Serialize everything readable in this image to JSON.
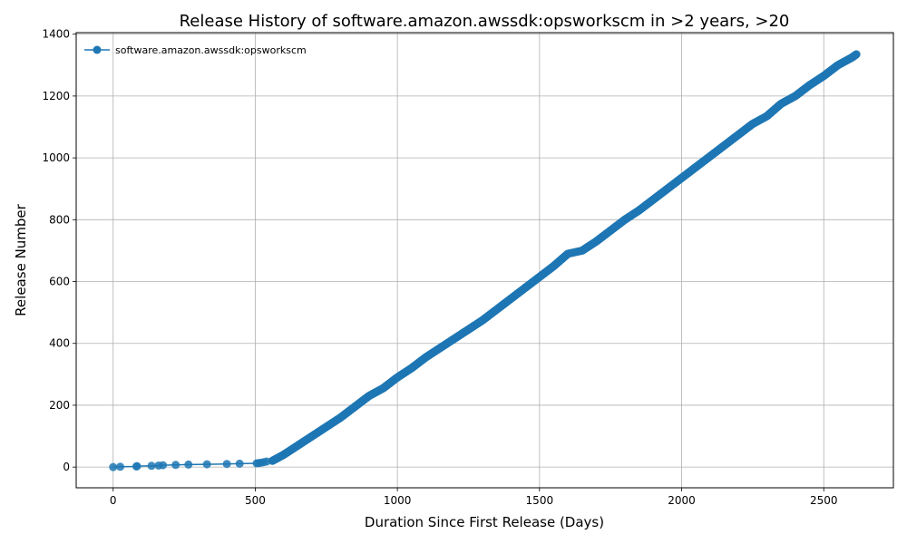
{
  "chart_data": {
    "type": "line",
    "title": "Release History of software.amazon.awssdk:opsworkscm in >2 years, >20",
    "xlabel": "Duration Since First Release (Days)",
    "ylabel": "Release Number",
    "xlim": [
      -130,
      2745
    ],
    "ylim": [
      -67,
      1405
    ],
    "xticks": [
      0,
      500,
      1000,
      1500,
      2000,
      2500
    ],
    "yticks": [
      0,
      200,
      400,
      600,
      800,
      1000,
      1200,
      1400
    ],
    "grid": true,
    "legend_position": "top-left",
    "series": [
      {
        "name": "software.amazon.awssdk:opsworkscm",
        "color": "#1f77b4",
        "marker": "circle",
        "points": [
          [
            0,
            0
          ],
          [
            25,
            1
          ],
          [
            82,
            2
          ],
          [
            84,
            3
          ],
          [
            135,
            4
          ],
          [
            160,
            5
          ],
          [
            175,
            6
          ],
          [
            220,
            7
          ],
          [
            265,
            8
          ],
          [
            330,
            9
          ],
          [
            400,
            10
          ],
          [
            445,
            11
          ],
          [
            505,
            12
          ],
          [
            512,
            13
          ],
          [
            520,
            14
          ],
          [
            530,
            16
          ],
          [
            540,
            18
          ],
          [
            560,
            20
          ]
        ],
        "segments": [
          [
            560,
            20
          ],
          [
            600,
            40
          ],
          [
            650,
            70
          ],
          [
            700,
            100
          ],
          [
            750,
            130
          ],
          [
            800,
            160
          ],
          [
            850,
            195
          ],
          [
            900,
            230
          ],
          [
            950,
            255
          ],
          [
            1000,
            290
          ],
          [
            1050,
            320
          ],
          [
            1100,
            355
          ],
          [
            1150,
            385
          ],
          [
            1200,
            415
          ],
          [
            1250,
            445
          ],
          [
            1300,
            475
          ],
          [
            1350,
            510
          ],
          [
            1400,
            545
          ],
          [
            1450,
            580
          ],
          [
            1500,
            615
          ],
          [
            1550,
            650
          ],
          [
            1600,
            690
          ],
          [
            1650,
            700
          ],
          [
            1700,
            730
          ],
          [
            1750,
            765
          ],
          [
            1800,
            800
          ],
          [
            1850,
            830
          ],
          [
            1900,
            865
          ],
          [
            1950,
            900
          ],
          [
            2000,
            935
          ],
          [
            2050,
            970
          ],
          [
            2100,
            1005
          ],
          [
            2150,
            1040
          ],
          [
            2200,
            1075
          ],
          [
            2250,
            1110
          ],
          [
            2300,
            1135
          ],
          [
            2350,
            1175
          ],
          [
            2400,
            1200
          ],
          [
            2450,
            1235
          ],
          [
            2500,
            1265
          ],
          [
            2550,
            1300
          ],
          [
            2600,
            1325
          ],
          [
            2615,
            1335
          ]
        ]
      }
    ]
  }
}
